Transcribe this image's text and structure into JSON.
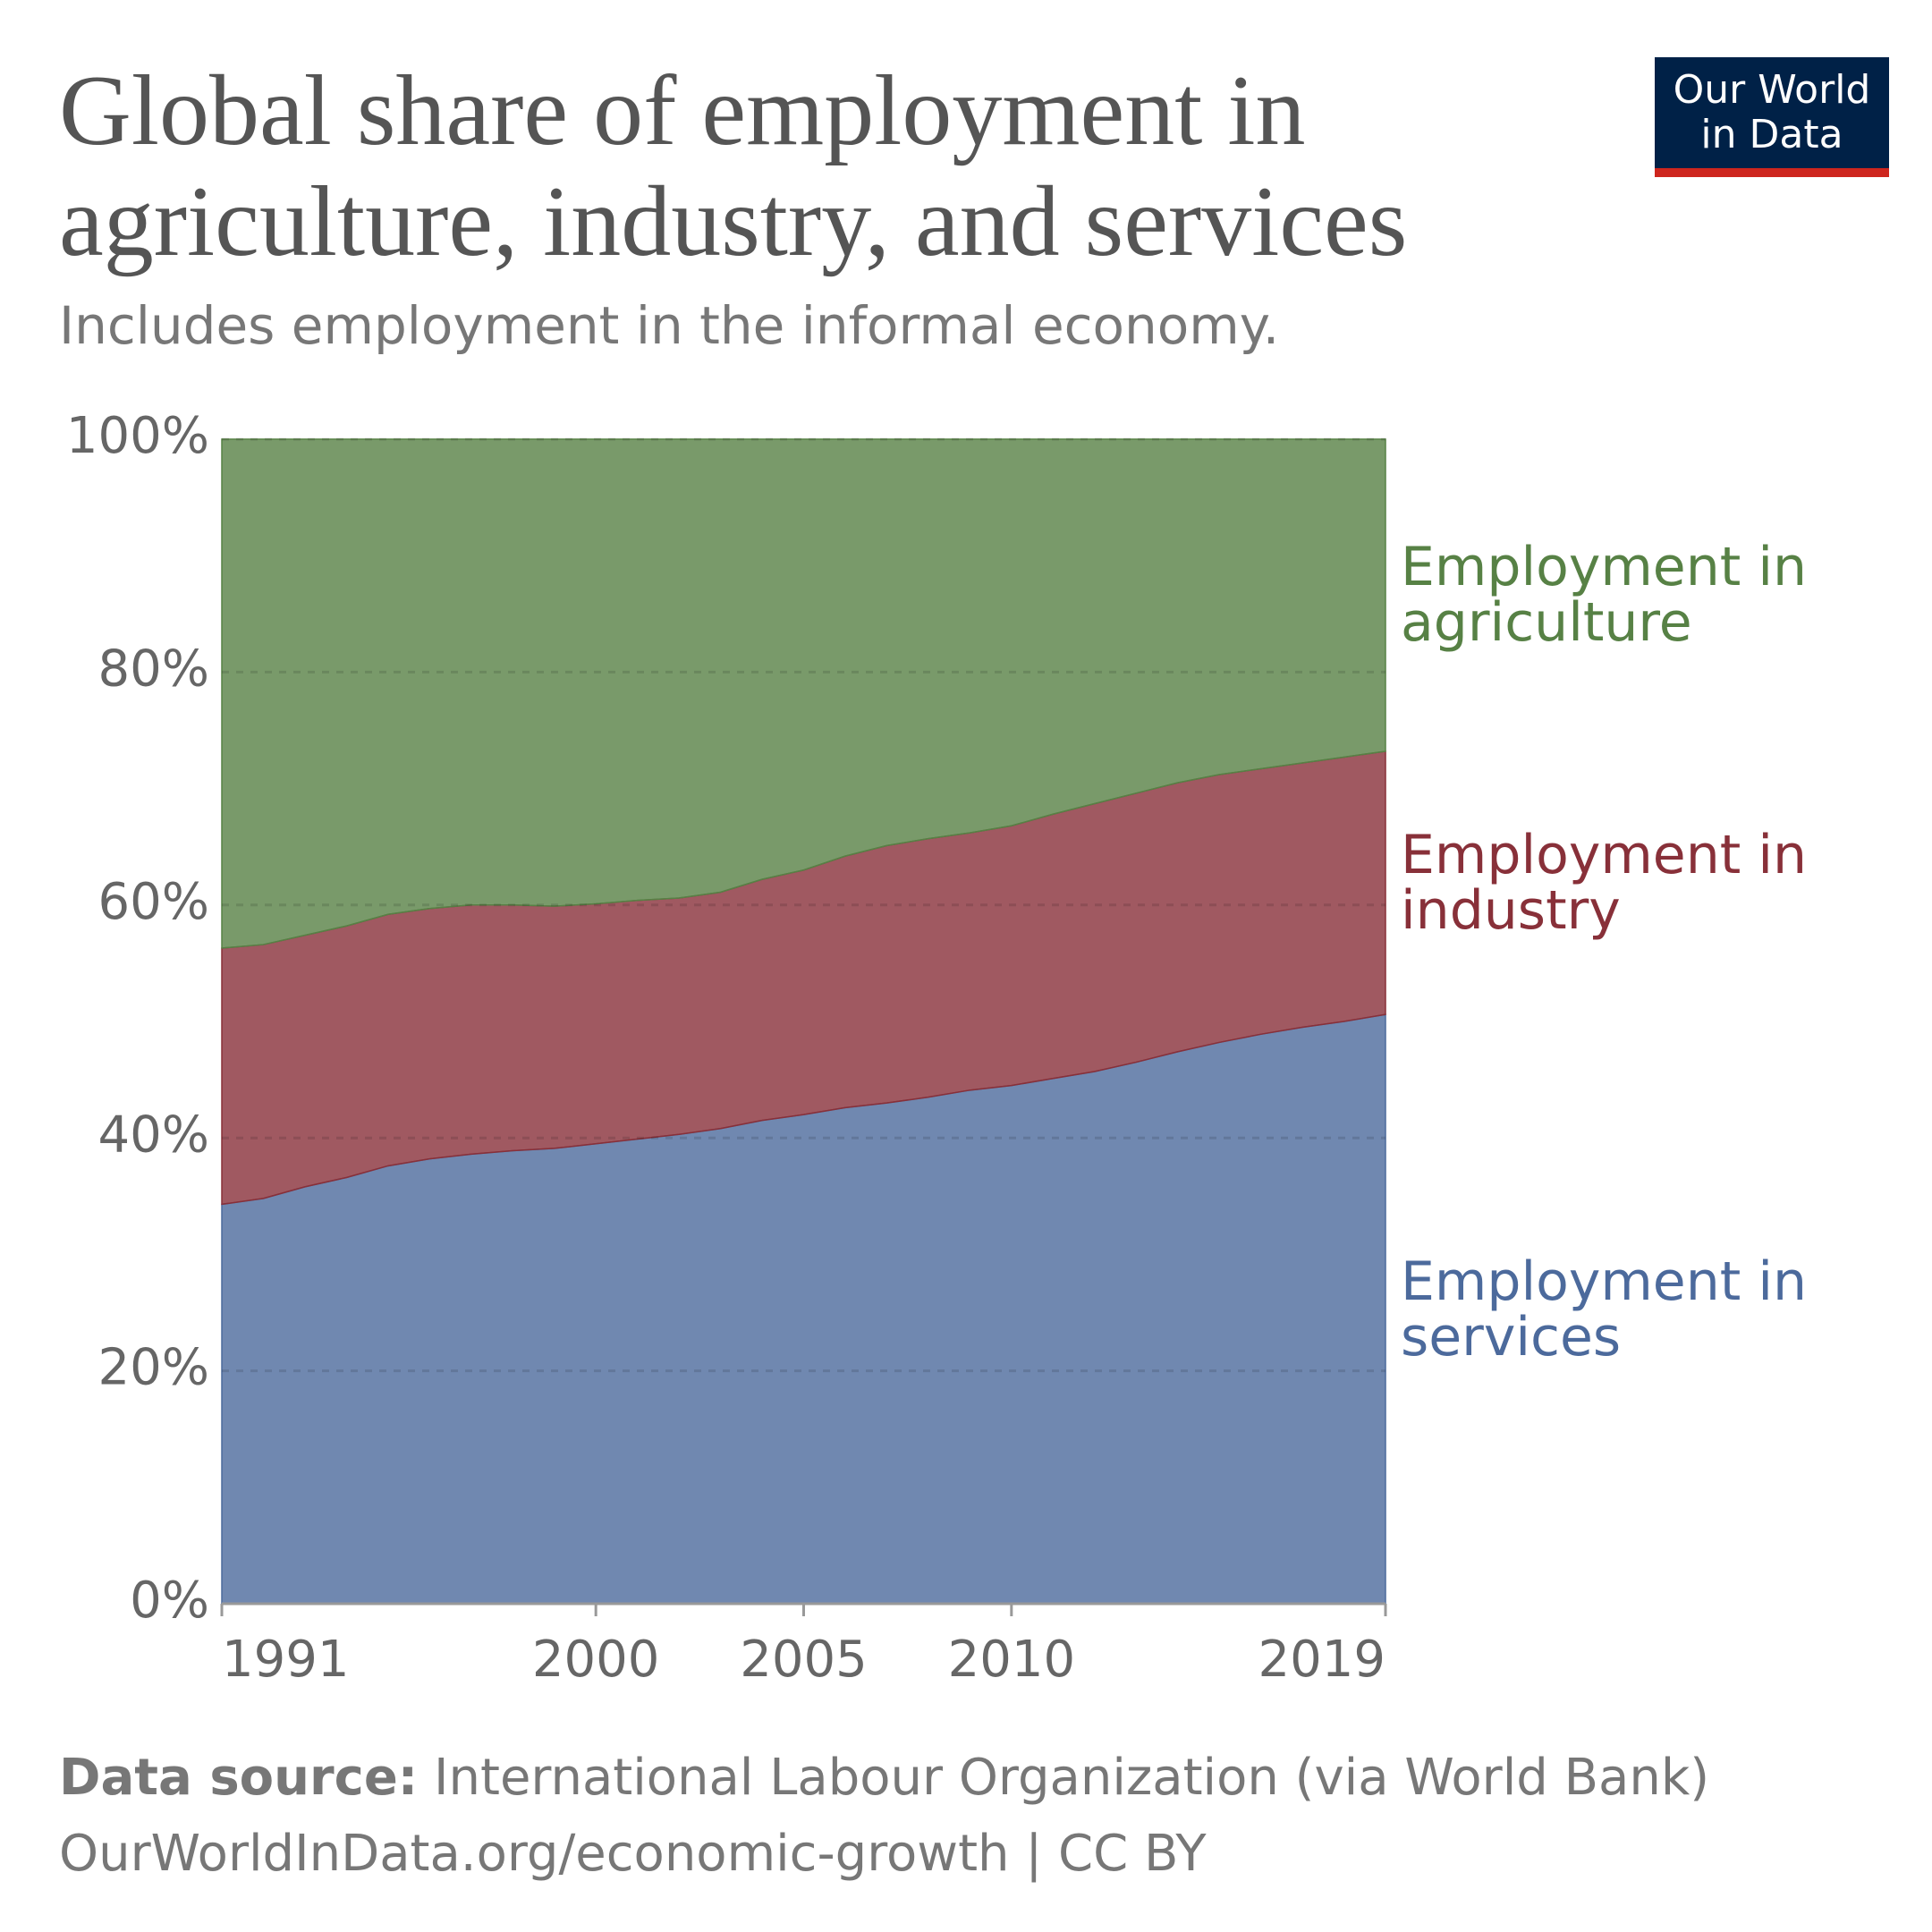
{
  "chart_data": {
    "type": "stacked-area",
    "title": "Global share of employment in agriculture, industry, and services",
    "subtitle": "Includes employment in the informal economy.",
    "logo": "Our World in Data",
    "source_label": "Data source:",
    "source": "International Labour Organization (via World Bank)",
    "footer": "OurWorldInData.org/economic-growth | CC BY",
    "x": [
      1991,
      1992,
      1993,
      1994,
      1995,
      1996,
      1997,
      1998,
      1999,
      2000,
      2001,
      2002,
      2003,
      2004,
      2005,
      2006,
      2007,
      2008,
      2009,
      2010,
      2011,
      2012,
      2013,
      2014,
      2015,
      2016,
      2017,
      2018,
      2019
    ],
    "xlim": [
      1991,
      2019
    ],
    "xticks": [
      1991,
      2000,
      2005,
      2010,
      2019
    ],
    "ylim": [
      0,
      100
    ],
    "yticks": [
      {
        "value": 0,
        "label": "0%"
      },
      {
        "value": 20,
        "label": "20%"
      },
      {
        "value": 40,
        "label": "40%"
      },
      {
        "value": 60,
        "label": "60%"
      },
      {
        "value": 80,
        "label": "80%"
      },
      {
        "value": 100,
        "label": "100%"
      }
    ],
    "grid": true,
    "series": [
      {
        "name": "Employment in services",
        "color": "#4c6a9c",
        "values": [
          34.3,
          34.8,
          35.8,
          36.6,
          37.6,
          38.2,
          38.6,
          38.9,
          39.1,
          39.5,
          39.9,
          40.3,
          40.8,
          41.5,
          42.0,
          42.6,
          43.0,
          43.5,
          44.1,
          44.5,
          45.1,
          45.7,
          46.5,
          47.4,
          48.2,
          48.9,
          49.5,
          50.0,
          50.6
        ]
      },
      {
        "name": "Employment in industry",
        "color": "#883039",
        "values": [
          22.0,
          21.8,
          21.6,
          21.6,
          21.6,
          21.5,
          21.4,
          21.1,
          20.8,
          20.6,
          20.5,
          20.3,
          20.3,
          20.7,
          21.0,
          21.6,
          22.1,
          22.2,
          22.1,
          22.3,
          22.7,
          23.0,
          23.1,
          23.1,
          23.0,
          22.8,
          22.7,
          22.7,
          22.6
        ]
      },
      {
        "name": "Employment in agriculture",
        "color": "#578145",
        "values": [
          43.7,
          43.4,
          42.6,
          41.8,
          40.8,
          40.3,
          40.0,
          40.0,
          40.1,
          39.9,
          39.6,
          39.4,
          38.9,
          37.8,
          37.0,
          35.8,
          34.9,
          34.3,
          33.8,
          33.2,
          32.2,
          31.3,
          30.4,
          29.5,
          28.8,
          28.3,
          27.8,
          27.3,
          26.8
        ]
      }
    ]
  }
}
